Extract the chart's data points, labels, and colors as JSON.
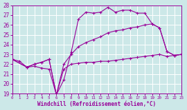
{
  "xlabel": "Windchill (Refroidissement éolien,°C)",
  "xlim": [
    0,
    23
  ],
  "ylim": [
    19,
    28
  ],
  "yticks": [
    19,
    20,
    21,
    22,
    23,
    24,
    25,
    26,
    27,
    28
  ],
  "xticks": [
    0,
    1,
    2,
    3,
    4,
    5,
    6,
    7,
    8,
    9,
    10,
    11,
    12,
    13,
    14,
    15,
    16,
    17,
    18,
    19,
    20,
    21,
    22,
    23
  ],
  "bg": "#cce8e8",
  "grid_color": "#ffffff",
  "lc": "#990099",
  "line1_x": [
    0,
    1,
    2,
    3,
    4,
    5,
    6,
    7,
    8,
    9,
    10,
    11,
    12,
    13,
    14,
    15,
    16,
    17,
    18,
    19,
    20,
    21,
    22,
    23
  ],
  "line1_y": [
    22.5,
    22.3,
    21.7,
    21.8,
    21.6,
    21.5,
    18.9,
    20.4,
    23.2,
    26.6,
    27.3,
    27.2,
    27.3,
    27.8,
    27.3,
    27.5,
    27.5,
    27.2,
    27.2,
    26.1,
    25.7,
    23.3,
    22.9,
    23.0
  ],
  "line2_x": [
    0,
    2,
    3,
    4,
    5,
    6,
    7,
    8,
    9,
    10,
    11,
    12,
    13,
    14,
    15,
    16,
    17,
    18,
    19,
    20,
    21,
    22,
    23
  ],
  "line2_y": [
    22.5,
    21.7,
    22.0,
    22.2,
    22.5,
    18.9,
    22.0,
    23.0,
    23.8,
    24.2,
    24.5,
    24.8,
    25.2,
    25.4,
    25.5,
    25.7,
    25.8,
    26.0,
    26.1,
    25.7,
    23.3,
    22.9,
    23.0
  ],
  "line3_x": [
    0,
    2,
    3,
    4,
    5,
    6,
    7,
    8,
    9,
    10,
    11,
    12,
    13,
    14,
    15,
    16,
    17,
    18,
    19,
    20,
    21,
    22,
    23
  ],
  "line3_y": [
    22.5,
    21.7,
    22.0,
    22.2,
    22.5,
    18.9,
    21.5,
    22.0,
    22.1,
    22.2,
    22.2,
    22.3,
    22.3,
    22.4,
    22.5,
    22.6,
    22.7,
    22.8,
    22.9,
    23.0,
    22.8,
    22.9,
    23.0
  ]
}
